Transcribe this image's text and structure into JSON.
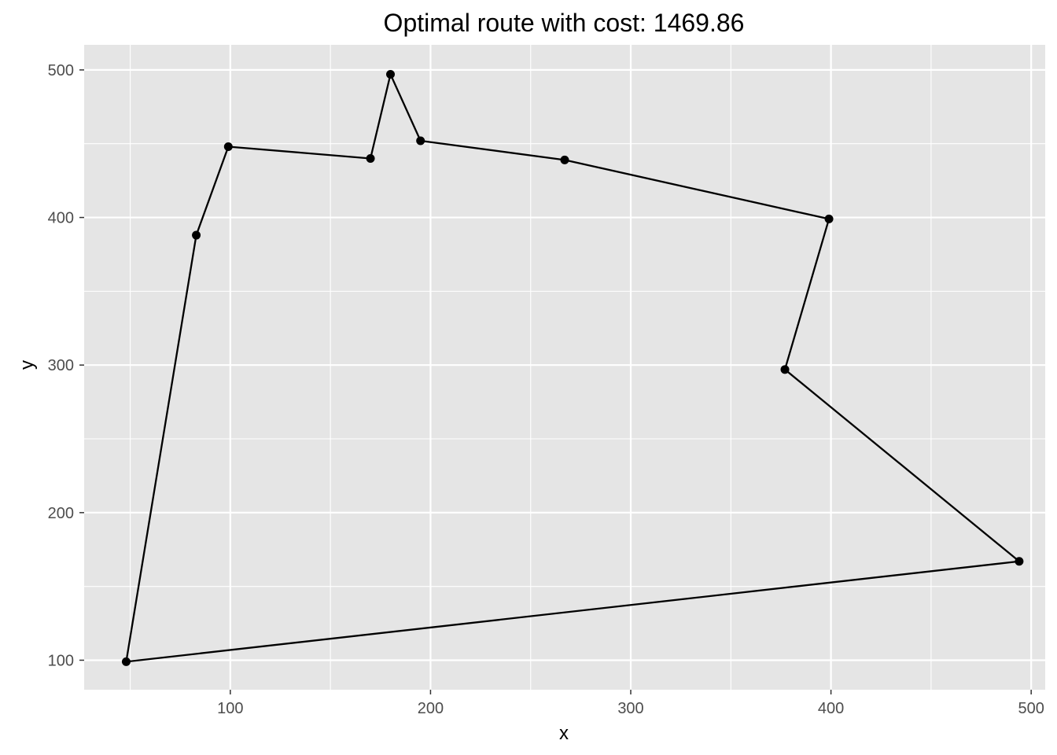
{
  "chart_data": {
    "type": "line",
    "title": "Optimal route with cost: 1469.86",
    "xlabel": "x",
    "ylabel": "y",
    "xlim": [
      27,
      507
    ],
    "ylim": [
      80,
      517
    ],
    "x_ticks": [
      100,
      200,
      300,
      400,
      500
    ],
    "y_ticks": [
      100,
      200,
      300,
      400,
      500
    ],
    "x_minor_ticks": [
      50,
      150,
      250,
      350,
      450
    ],
    "y_minor_ticks": [
      150,
      250,
      350,
      450
    ],
    "grid": true,
    "closed_path": true,
    "colors": {
      "panel_background": "#e5e5e5",
      "grid_line": "#ffffff",
      "path_line": "#000000",
      "point": "#000000",
      "axis_text": "#4d4d4d",
      "title_text": "#000000"
    },
    "series": [
      {
        "x": [
          48,
          83,
          99,
          170,
          180,
          195,
          267,
          399,
          377,
          494
        ],
        "y": [
          99,
          388,
          448,
          440,
          497,
          452,
          439,
          399,
          297,
          167
        ]
      }
    ]
  }
}
